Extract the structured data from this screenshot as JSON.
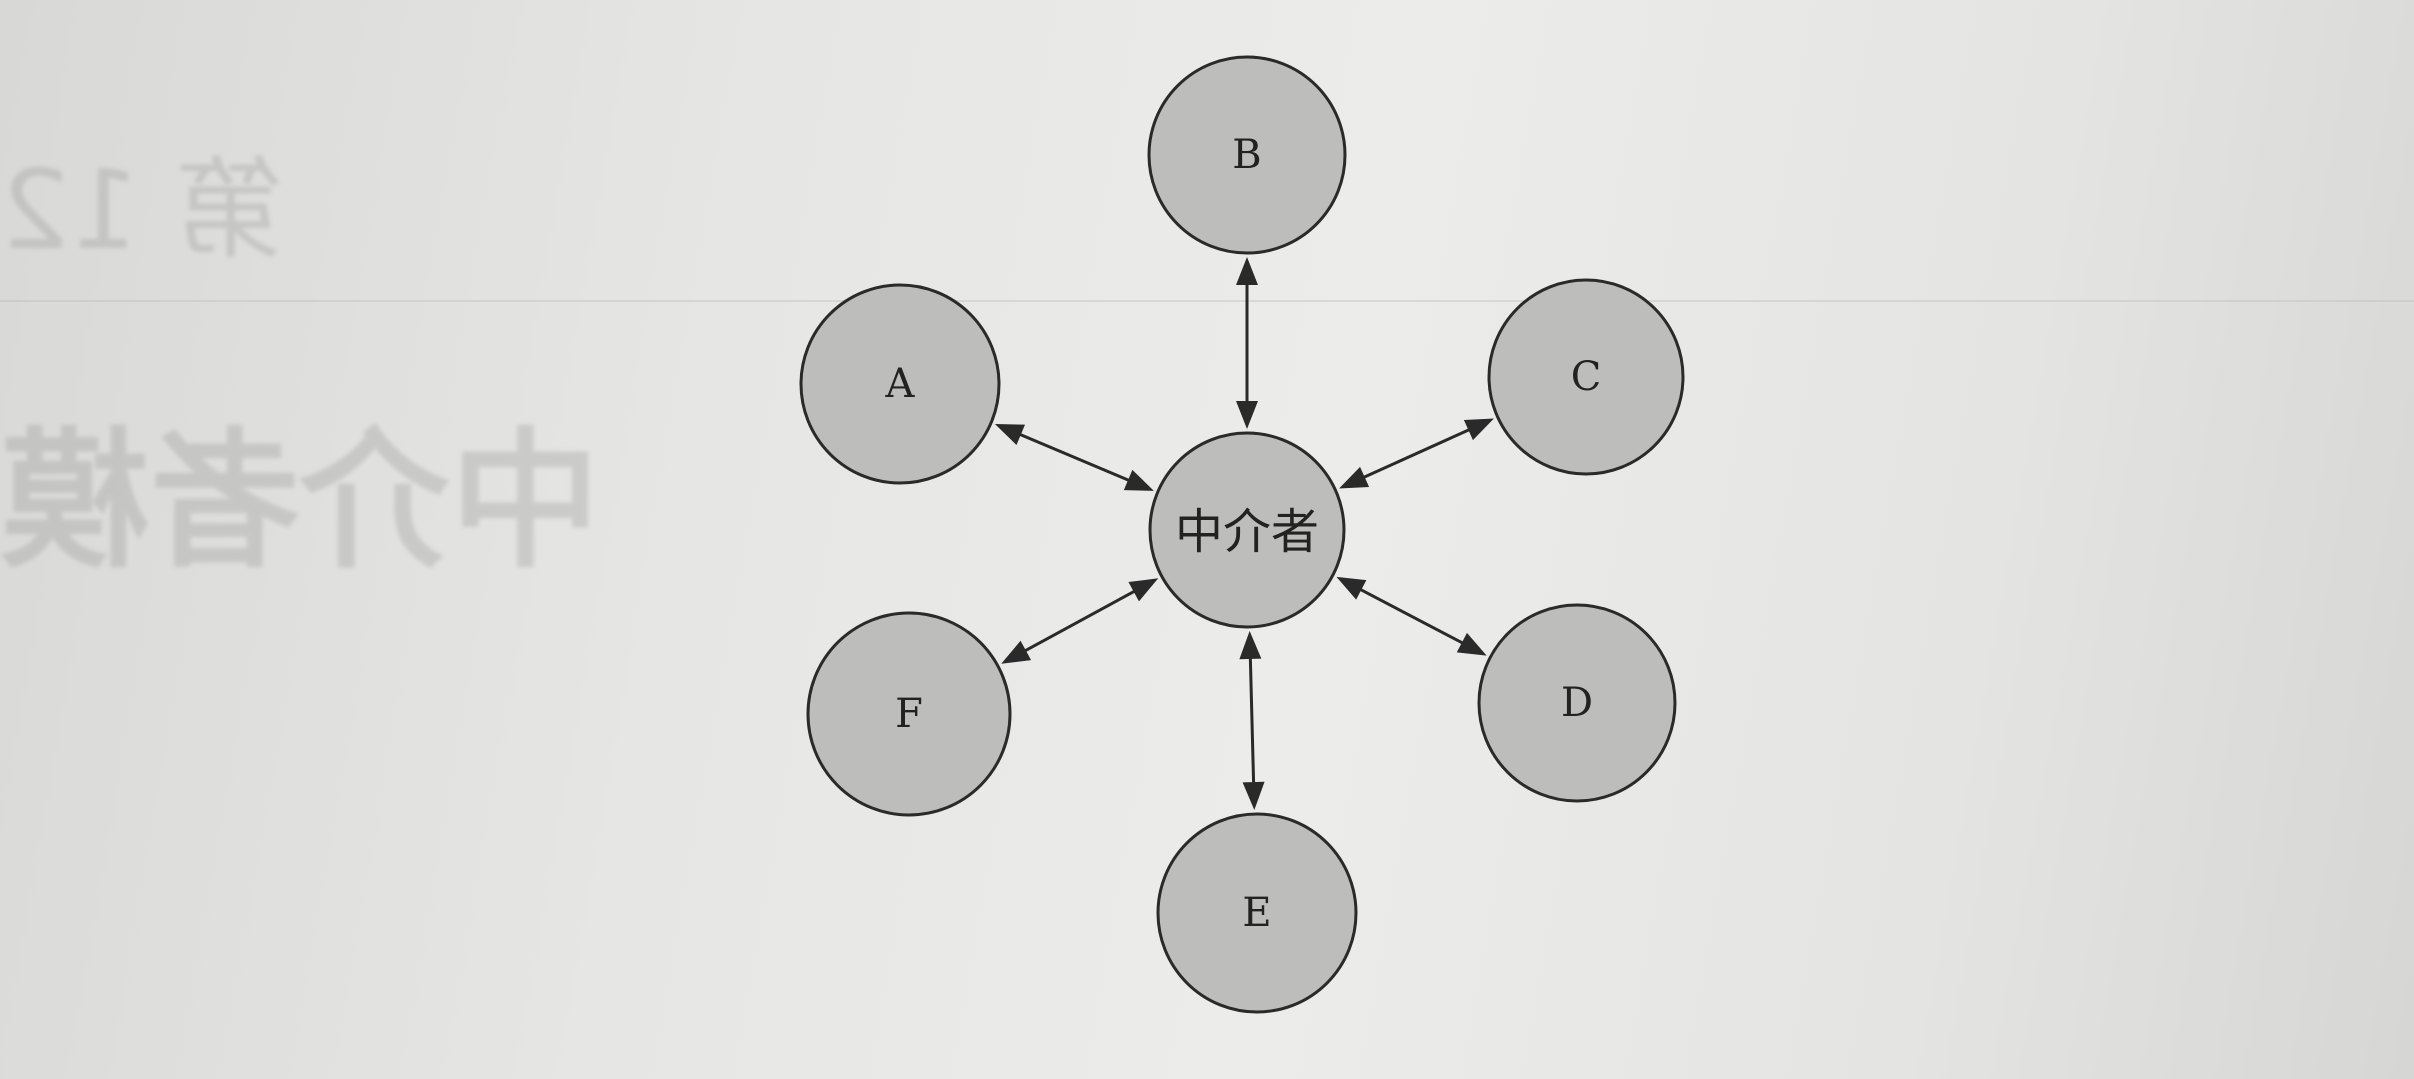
{
  "diagram": {
    "center": {
      "id": "mediator",
      "label": "中介者"
    },
    "nodes": [
      {
        "id": "A",
        "label": "A"
      },
      {
        "id": "B",
        "label": "B"
      },
      {
        "id": "C",
        "label": "C"
      },
      {
        "id": "D",
        "label": "D"
      },
      {
        "id": "E",
        "label": "E"
      },
      {
        "id": "F",
        "label": "F"
      }
    ],
    "edges": [
      {
        "from": "mediator",
        "to": "A",
        "direction": "both"
      },
      {
        "from": "mediator",
        "to": "B",
        "direction": "both"
      },
      {
        "from": "mediator",
        "to": "C",
        "direction": "both"
      },
      {
        "from": "mediator",
        "to": "D",
        "direction": "both"
      },
      {
        "from": "mediator",
        "to": "E",
        "direction": "both"
      },
      {
        "from": "mediator",
        "to": "F",
        "direction": "both"
      }
    ],
    "node_fill": "#bdbdbb",
    "stroke_color": "#2a2a2a"
  },
  "background_bleed": {
    "heading_small": "第 12",
    "heading_large": "中介者模"
  }
}
